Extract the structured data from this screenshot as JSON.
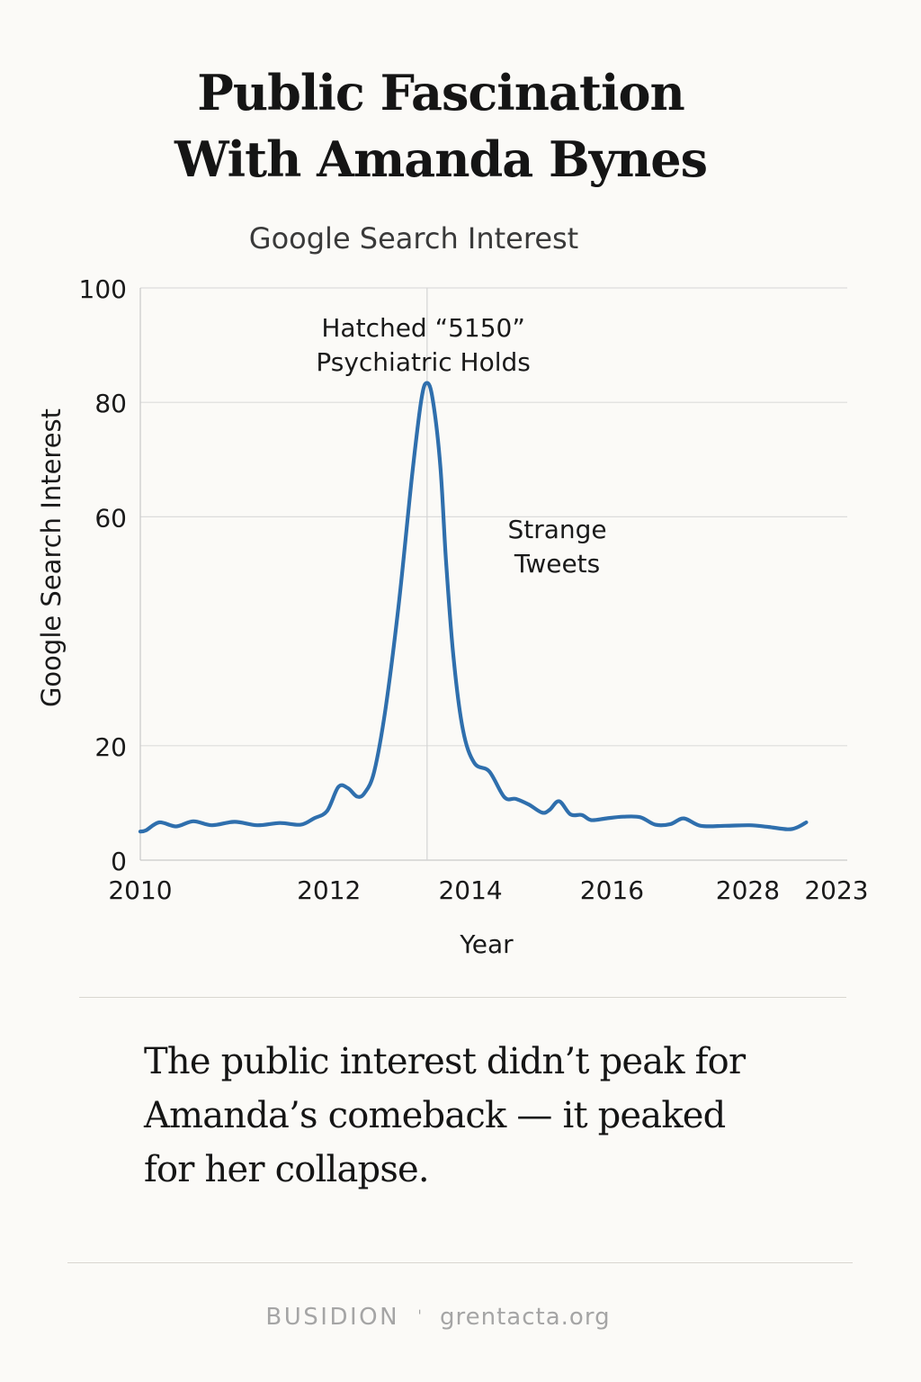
{
  "page": {
    "title_lines": [
      "Public Fascination",
      "With Amanda Bynes"
    ],
    "caption_lines": [
      "The public interest didn’t peak for",
      "Amanda’s comeback — it peaked",
      "for her collapse."
    ],
    "footer": {
      "brand": "BUSIDION",
      "separator": "ˈ",
      "site": "grentacta.org"
    }
  },
  "chart_data": {
    "type": "line",
    "title": "Public Fascination With Amanda Bynes",
    "subtitle": "Google Search Interest",
    "xlabel": "Year",
    "ylabel": "Google Search Interest",
    "ylim": [
      0,
      100
    ],
    "xlim": [
      2010,
      2013.69
    ],
    "yticks": [
      0,
      20,
      60,
      80,
      100
    ],
    "xticks": [
      {
        "value": 2010,
        "label": "2010"
      },
      {
        "value": 2011,
        "label": "2012"
      },
      {
        "value": 2011.75,
        "label": "2014"
      },
      {
        "value": 2012.5,
        "label": "2016"
      },
      {
        "value": 2013.22,
        "label": "2028"
      },
      {
        "value": 2013.69,
        "label": "2023"
      }
    ],
    "grid": true,
    "series": [
      {
        "name": "Google Search Interest",
        "color": "#2f6fad",
        "points": [
          [
            2010.0,
            5
          ],
          [
            2010.03,
            5.2
          ],
          [
            2010.1,
            6.6
          ],
          [
            2010.19,
            5.9
          ],
          [
            2010.28,
            6.8
          ],
          [
            2010.38,
            6.1
          ],
          [
            2010.5,
            6.7
          ],
          [
            2010.62,
            6.1
          ],
          [
            2010.74,
            6.5
          ],
          [
            2010.85,
            6.2
          ],
          [
            2010.92,
            7.3
          ],
          [
            2010.99,
            8.6
          ],
          [
            2011.05,
            12.8
          ],
          [
            2011.1,
            12.6
          ],
          [
            2011.15,
            11.1
          ],
          [
            2011.19,
            11.8
          ],
          [
            2011.24,
            15.5
          ],
          [
            2011.3,
            26.5
          ],
          [
            2011.37,
            44.8
          ],
          [
            2011.44,
            67
          ],
          [
            2011.49,
            80.5
          ],
          [
            2011.52,
            83.4
          ],
          [
            2011.55,
            80.5
          ],
          [
            2011.59,
            69
          ],
          [
            2011.62,
            52.5
          ],
          [
            2011.66,
            35.5
          ],
          [
            2011.71,
            22.8
          ],
          [
            2011.77,
            17
          ],
          [
            2011.85,
            15.5
          ],
          [
            2011.93,
            11
          ],
          [
            2011.99,
            10.7
          ],
          [
            2012.06,
            9.7
          ],
          [
            2012.13,
            8.3
          ],
          [
            2012.17,
            8.8
          ],
          [
            2012.22,
            10.3
          ],
          [
            2012.28,
            8
          ],
          [
            2012.34,
            7.9
          ],
          [
            2012.39,
            7
          ],
          [
            2012.47,
            7.3
          ],
          [
            2012.56,
            7.6
          ],
          [
            2012.65,
            7.5
          ],
          [
            2012.73,
            6.2
          ],
          [
            2012.81,
            6.3
          ],
          [
            2012.88,
            7.3
          ],
          [
            2012.97,
            6
          ],
          [
            2013.1,
            6
          ],
          [
            2013.23,
            6.1
          ],
          [
            2013.33,
            5.8
          ],
          [
            2013.43,
            5.4
          ],
          [
            2013.48,
            5.7
          ],
          [
            2013.53,
            6.6
          ]
        ]
      }
    ],
    "reference_line": {
      "x": 2011.52
    },
    "annotations": [
      {
        "text_lines": [
          "Hatched “5150”",
          "Psychiatric Holds"
        ],
        "x": 2011.5,
        "y": 91.5
      },
      {
        "text_lines": [
          "Strange",
          "Tweets"
        ],
        "x": 2012.21,
        "y": 56.3
      }
    ]
  }
}
